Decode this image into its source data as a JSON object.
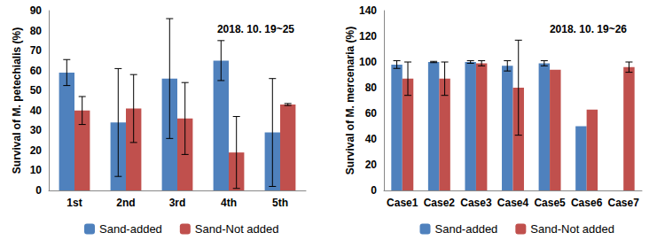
{
  "chart_data": [
    {
      "type": "bar",
      "title": "2018. 10. 19~25",
      "y_label": "Survival of M. petechialis (%)",
      "categories": [
        "1st",
        "2nd",
        "3rd",
        "4th",
        "5th"
      ],
      "ylim": [
        0,
        90
      ],
      "yticks": [
        0,
        10,
        20,
        30,
        40,
        50,
        60,
        70,
        80,
        90
      ],
      "grid": false,
      "legend": "bottom",
      "series": [
        {
          "name": "Sand-added",
          "color": "#4f81bd",
          "values": [
            59,
            34,
            56,
            65,
            29
          ],
          "errors": [
            6.5,
            27,
            30,
            10,
            27
          ]
        },
        {
          "name": "Sand-Not added",
          "color": "#c0504d",
          "values": [
            40,
            41,
            36,
            19,
            43
          ],
          "errors": [
            7,
            17,
            18,
            18,
            0.5
          ]
        }
      ]
    },
    {
      "type": "bar",
      "title": "2018. 10. 19~26",
      "y_label": "Survival of M. mercenaria (%)",
      "categories": [
        "Case1",
        "Case2",
        "Case3",
        "Case4",
        "Case5",
        "Case6",
        "Case7"
      ],
      "ylim": [
        0,
        140
      ],
      "yticks": [
        0,
        20,
        40,
        60,
        80,
        100,
        120,
        140
      ],
      "grid": false,
      "legend": "bottom",
      "series": [
        {
          "name": "Sand-added",
          "color": "#4f81bd",
          "values": [
            98,
            100,
            100,
            97,
            99,
            50,
            null
          ],
          "errors": [
            3,
            0.5,
            1,
            4,
            2,
            null,
            null
          ]
        },
        {
          "name": "Sand-Not added",
          "color": "#c0504d",
          "values": [
            87,
            87,
            99,
            80,
            94,
            63,
            96
          ],
          "errors": [
            13,
            13,
            2,
            37,
            null,
            null,
            4
          ]
        }
      ]
    }
  ]
}
